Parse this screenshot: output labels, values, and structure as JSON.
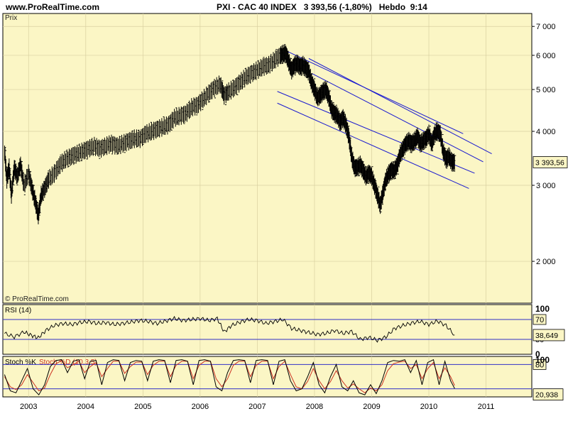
{
  "header": {
    "site": "www.ProRealTime.com",
    "title": "PXI - CAC 40 INDEX   3 393,56 (-1,80%)   Hebdo  9:14"
  },
  "colors": {
    "panel_bg": "#fbf6c5",
    "channel": "#1a1ad0",
    "level_line": "#3030c8",
    "stoch_d": "#cc3322",
    "page_bg": "#ffffff"
  },
  "chart_data": [
    {
      "type": "line",
      "style": "ohlc-bars",
      "panel_label": "Prix",
      "watermark": "© ProRealTime.com",
      "scale": "log",
      "ylim": [
        1600,
        7500
      ],
      "yticks": [
        2000,
        3000,
        4000,
        5000,
        6000,
        7000
      ],
      "ytick_labels": [
        "2 000",
        "3 000",
        "4 000",
        "5 000",
        "6 000",
        "7 000"
      ],
      "x_labels": [
        "2003",
        "2004",
        "2005",
        "2006",
        "2007",
        "2008",
        "2009",
        "2010",
        "2011"
      ],
      "x_label_years": [
        2003,
        2004,
        2005,
        2006,
        2007,
        2008,
        2009,
        2010,
        2011
      ],
      "xlim": [
        2002.55,
        2011.8
      ],
      "last_value_label": "3 393,56",
      "last_value": 3393.56,
      "x": [
        2002.58,
        2002.62,
        2002.66,
        2002.7,
        2002.75,
        2002.8,
        2002.86,
        2002.92,
        2003.0,
        2003.06,
        2003.12,
        2003.17,
        2003.22,
        2003.28,
        2003.35,
        2003.45,
        2003.55,
        2003.65,
        2003.75,
        2003.85,
        2003.95,
        2004.05,
        2004.15,
        2004.25,
        2004.35,
        2004.45,
        2004.55,
        2004.65,
        2004.75,
        2004.85,
        2004.95,
        2005.05,
        2005.15,
        2005.25,
        2005.35,
        2005.45,
        2005.55,
        2005.65,
        2005.75,
        2005.85,
        2005.95,
        2006.05,
        2006.15,
        2006.25,
        2006.35,
        2006.42,
        2006.5,
        2006.6,
        2006.7,
        2006.8,
        2006.9,
        2007.0,
        2007.1,
        2007.2,
        2007.3,
        2007.4,
        2007.45,
        2007.5,
        2007.55,
        2007.6,
        2007.65,
        2007.7,
        2007.75,
        2007.8,
        2007.85,
        2007.9,
        2007.95,
        2008.0,
        2008.05,
        2008.1,
        2008.15,
        2008.2,
        2008.25,
        2008.3,
        2008.35,
        2008.4,
        2008.45,
        2008.5,
        2008.55,
        2008.6,
        2008.65,
        2008.7,
        2008.75,
        2008.8,
        2008.85,
        2008.9,
        2008.95,
        2009.0,
        2009.05,
        2009.1,
        2009.15,
        2009.2,
        2009.25,
        2009.3,
        2009.35,
        2009.4,
        2009.45,
        2009.5,
        2009.55,
        2009.6,
        2009.65,
        2009.7,
        2009.75,
        2009.8,
        2009.85,
        2009.9,
        2009.95,
        2010.0,
        2010.05,
        2010.1,
        2010.15,
        2010.2,
        2010.25,
        2010.3,
        2010.35,
        2010.4,
        2010.45
      ],
      "close": [
        3600,
        3100,
        3300,
        2850,
        3300,
        3150,
        3350,
        3000,
        3200,
        2950,
        2750,
        2550,
        2850,
        2950,
        3100,
        3200,
        3350,
        3450,
        3500,
        3550,
        3600,
        3650,
        3700,
        3650,
        3700,
        3750,
        3700,
        3750,
        3800,
        3850,
        3850,
        3950,
        4000,
        4050,
        4100,
        4150,
        4300,
        4350,
        4400,
        4550,
        4600,
        4750,
        4900,
        5050,
        5150,
        4850,
        4950,
        5050,
        5200,
        5350,
        5450,
        5550,
        5650,
        5700,
        5850,
        6000,
        6050,
        6050,
        5800,
        5550,
        5700,
        5750,
        5650,
        5700,
        5600,
        5500,
        5200,
        5000,
        4800,
        4850,
        4950,
        5000,
        4800,
        4500,
        4400,
        4350,
        4200,
        4300,
        4150,
        3900,
        3500,
        3300,
        3300,
        3350,
        3250,
        3150,
        3200,
        3150,
        3000,
        2850,
        2700,
        2900,
        3100,
        3200,
        3250,
        3250,
        3350,
        3550,
        3650,
        3750,
        3800,
        3750,
        3800,
        3900,
        3750,
        3800,
        3850,
        3950,
        3750,
        3950,
        4000,
        3950,
        3600,
        3450,
        3500,
        3400,
        3393.56
      ]
    },
    {
      "type": "line",
      "panel_label": "RSI (14)",
      "ylim": [
        0,
        100
      ],
      "yticks": [
        0,
        30,
        70,
        100
      ],
      "ytick_labels": [
        "0",
        "30",
        "70",
        "100"
      ],
      "levels": [
        30,
        70
      ],
      "last_value_label": "38,649",
      "x": [
        2002.58,
        2002.75,
        2002.92,
        2003.05,
        2003.17,
        2003.3,
        2003.45,
        2003.6,
        2003.75,
        2003.9,
        2004.05,
        2004.2,
        2004.35,
        2004.5,
        2004.65,
        2004.8,
        2004.95,
        2005.1,
        2005.25,
        2005.4,
        2005.55,
        2005.7,
        2005.85,
        2006.0,
        2006.15,
        2006.3,
        2006.42,
        2006.55,
        2006.7,
        2006.85,
        2007.0,
        2007.15,
        2007.3,
        2007.45,
        2007.6,
        2007.75,
        2007.9,
        2008.05,
        2008.2,
        2008.35,
        2008.5,
        2008.65,
        2008.8,
        2008.95,
        2009.1,
        2009.25,
        2009.4,
        2009.55,
        2009.7,
        2009.85,
        2010.0,
        2010.15,
        2010.3,
        2010.45
      ],
      "values": [
        42,
        35,
        45,
        38,
        33,
        48,
        58,
        62,
        60,
        64,
        66,
        62,
        64,
        60,
        62,
        65,
        68,
        66,
        62,
        67,
        72,
        68,
        70,
        72,
        68,
        72,
        45,
        58,
        65,
        70,
        68,
        62,
        66,
        70,
        52,
        48,
        44,
        40,
        42,
        48,
        42,
        46,
        30,
        34,
        28,
        35,
        52,
        58,
        63,
        66,
        60,
        67,
        58,
        38.649
      ]
    },
    {
      "type": "line",
      "panel_label": "Stoch %K",
      "panel_label_2": "Stoch %D (10,3,5)",
      "ylim": [
        0,
        100
      ],
      "yticks": [
        20,
        80,
        100
      ],
      "ytick_labels": [
        "20",
        "80",
        "100"
      ],
      "levels": [
        20,
        80
      ],
      "last_value_label": "20,938",
      "x": [
        2002.58,
        2002.68,
        2002.78,
        2002.88,
        2002.98,
        2003.08,
        2003.18,
        2003.28,
        2003.38,
        2003.48,
        2003.58,
        2003.68,
        2003.78,
        2003.88,
        2003.98,
        2004.08,
        2004.18,
        2004.28,
        2004.38,
        2004.48,
        2004.58,
        2004.68,
        2004.78,
        2004.88,
        2004.98,
        2005.08,
        2005.18,
        2005.28,
        2005.38,
        2005.48,
        2005.58,
        2005.68,
        2005.78,
        2005.88,
        2005.98,
        2006.08,
        2006.18,
        2006.28,
        2006.38,
        2006.48,
        2006.58,
        2006.68,
        2006.78,
        2006.88,
        2006.98,
        2007.08,
        2007.18,
        2007.28,
        2007.38,
        2007.48,
        2007.58,
        2007.68,
        2007.78,
        2007.88,
        2007.98,
        2008.08,
        2008.18,
        2008.28,
        2008.38,
        2008.48,
        2008.58,
        2008.68,
        2008.78,
        2008.88,
        2008.98,
        2009.08,
        2009.18,
        2009.28,
        2009.38,
        2009.48,
        2009.58,
        2009.68,
        2009.78,
        2009.88,
        2009.98,
        2010.08,
        2010.18,
        2010.28,
        2010.38,
        2010.45
      ],
      "k": [
        55,
        15,
        10,
        40,
        70,
        20,
        5,
        30,
        75,
        90,
        92,
        60,
        88,
        92,
        45,
        88,
        90,
        30,
        85,
        92,
        90,
        40,
        85,
        90,
        88,
        40,
        88,
        92,
        90,
        35,
        90,
        92,
        88,
        30,
        90,
        92,
        88,
        25,
        15,
        60,
        90,
        92,
        90,
        35,
        90,
        92,
        90,
        30,
        88,
        92,
        40,
        15,
        20,
        50,
        85,
        30,
        10,
        50,
        80,
        25,
        15,
        40,
        10,
        5,
        30,
        8,
        40,
        85,
        90,
        88,
        92,
        60,
        90,
        30,
        85,
        92,
        30,
        88,
        40,
        20.938
      ],
      "d": [
        50,
        25,
        18,
        30,
        55,
        35,
        15,
        22,
        55,
        82,
        90,
        72,
        80,
        88,
        60,
        75,
        85,
        50,
        70,
        88,
        88,
        58,
        75,
        86,
        86,
        55,
        78,
        88,
        88,
        50,
        78,
        88,
        88,
        45,
        78,
        88,
        88,
        45,
        25,
        45,
        78,
        88,
        88,
        50,
        78,
        88,
        88,
        45,
        75,
        88,
        55,
        25,
        20,
        38,
        70,
        40,
        20,
        38,
        65,
        40,
        22,
        32,
        20,
        10,
        22,
        15,
        30,
        65,
        82,
        86,
        88,
        70,
        80,
        45,
        70,
        85,
        45,
        72,
        50,
        28
      ]
    }
  ],
  "channel_lines": [
    {
      "name": "channel-line-upper",
      "x1": 2007.5,
      "y1": 6150,
      "x2": 2010.6,
      "y2": 3950
    },
    {
      "name": "channel-line-2",
      "x1": 2007.9,
      "y1": 5900,
      "x2": 2011.1,
      "y2": 3550
    },
    {
      "name": "channel-line-3",
      "x1": 2007.95,
      "y1": 5450,
      "x2": 2010.95,
      "y2": 3400
    },
    {
      "name": "channel-line-4",
      "x1": 2007.35,
      "y1": 4950,
      "x2": 2010.8,
      "y2": 3200
    },
    {
      "name": "channel-line-lower",
      "x1": 2007.35,
      "y1": 4650,
      "x2": 2010.7,
      "y2": 2950
    }
  ]
}
